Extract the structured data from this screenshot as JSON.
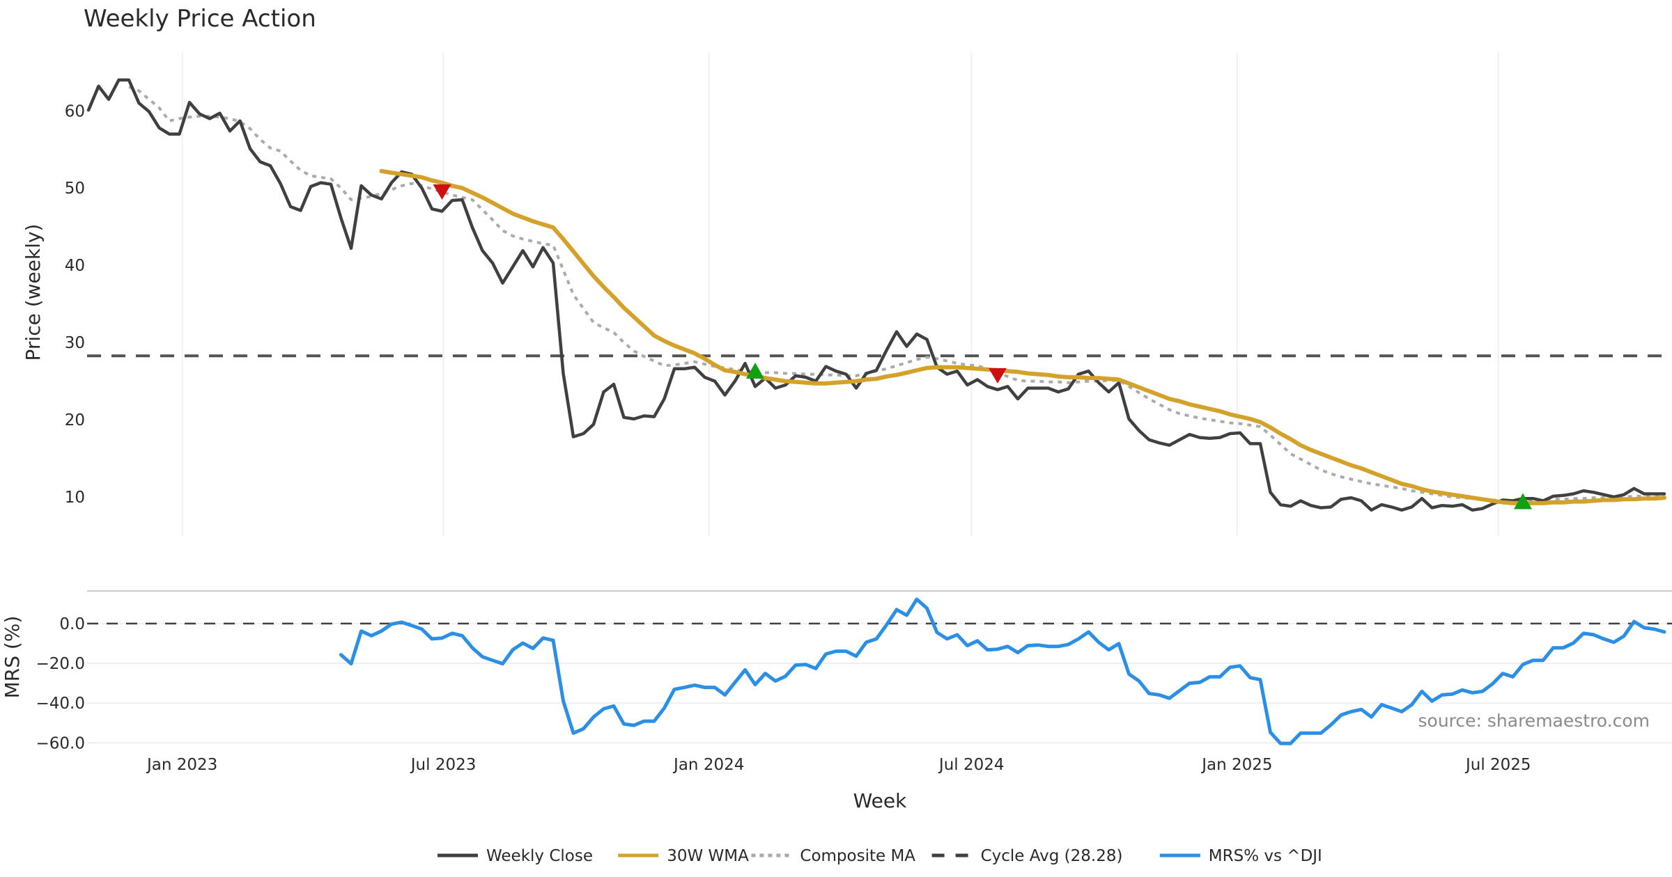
{
  "chart_data": {
    "type": "line",
    "title": "Weekly Price Action",
    "start_date": "2022-10-28",
    "step_days": 7,
    "xlabel": "Week",
    "x_ticks": [
      {
        "date": "2023-01-01",
        "label": "Jan 2023"
      },
      {
        "date": "2023-07-01",
        "label": "Jul 2023"
      },
      {
        "date": "2024-01-01",
        "label": "Jan 2024"
      },
      {
        "date": "2024-07-01",
        "label": "Jul 2024"
      },
      {
        "date": "2025-01-01",
        "label": "Jan 2025"
      },
      {
        "date": "2025-07-01",
        "label": "Jul 2025"
      }
    ],
    "price_panel": {
      "ylabel": "Price (weekly)",
      "ylim": [
        4.95,
        67.6
      ],
      "y_ticks": [
        {
          "value": 10,
          "label": "10"
        },
        {
          "value": 20,
          "label": "20"
        },
        {
          "value": 30,
          "label": "30"
        },
        {
          "value": 40,
          "label": "40"
        },
        {
          "value": 50,
          "label": "50"
        },
        {
          "value": 60,
          "label": "60"
        }
      ],
      "series": [
        {
          "name": "Weekly Close",
          "color": "#404040",
          "style": "solid",
          "start_index": 0,
          "values": [
            60.1,
            63.2,
            61.5,
            64.0,
            64.0,
            61.0,
            59.9,
            57.8,
            57.0,
            57.0,
            61.1,
            59.6,
            59.0,
            59.7,
            57.4,
            58.7,
            55.1,
            53.4,
            52.9,
            50.6,
            47.6,
            47.1,
            50.2,
            50.7,
            50.5,
            46.1,
            42.2,
            50.3,
            49.1,
            48.6,
            50.7,
            52.1,
            51.8,
            50.0,
            47.3,
            47.0,
            48.4,
            48.5,
            44.9,
            41.9,
            40.3,
            37.7,
            39.8,
            41.9,
            39.8,
            42.3,
            40.3,
            26.0,
            17.8,
            18.2,
            19.4,
            23.6,
            24.6,
            20.3,
            20.1,
            20.5,
            20.4,
            22.7,
            26.6,
            26.6,
            26.8,
            25.5,
            25.0,
            23.2,
            25.0,
            27.3,
            24.3,
            25.4,
            24.1,
            24.5,
            25.7,
            25.5,
            25.0,
            26.9,
            26.3,
            25.9,
            24.1,
            26.0,
            26.4,
            29.0,
            31.4,
            29.5,
            31.1,
            30.4,
            26.8,
            25.9,
            26.3,
            24.5,
            25.2,
            24.3,
            23.9,
            24.3,
            22.7,
            24.1,
            24.1,
            24.1,
            23.6,
            24.0,
            25.9,
            26.3,
            24.8,
            23.6,
            24.8,
            20.1,
            18.6,
            17.4,
            17.0,
            16.7,
            17.4,
            18.1,
            17.7,
            17.6,
            17.7,
            18.2,
            18.3,
            16.9,
            16.9,
            10.6,
            9.0,
            8.8,
            9.5,
            8.9,
            8.6,
            8.7,
            9.7,
            9.9,
            9.5,
            8.3,
            9.0,
            8.7,
            8.3,
            8.7,
            9.8,
            8.6,
            8.9,
            8.8,
            9.0,
            8.3,
            8.5,
            9.1,
            9.6,
            9.5,
            9.8,
            9.8,
            9.5,
            10.1,
            10.2,
            10.4,
            10.8,
            10.6,
            10.3,
            10.0,
            10.3,
            11.1,
            10.4,
            10.4,
            10.4
          ]
        },
        {
          "name": "30W WMA",
          "color": "#D4A22A",
          "style": "solid",
          "start_index": 29,
          "values": [
            52.2,
            52.0,
            51.8,
            51.6,
            51.4,
            51.0,
            50.7,
            50.3,
            50.0,
            49.4,
            48.8,
            48.1,
            47.4,
            46.7,
            46.2,
            45.7,
            45.3,
            44.9,
            43.4,
            41.8,
            40.2,
            38.6,
            37.2,
            35.9,
            34.5,
            33.3,
            32.1,
            30.9,
            30.2,
            29.6,
            29.1,
            28.6,
            27.9,
            27.1,
            26.4,
            26.2,
            25.9,
            25.7,
            25.4,
            25.2,
            25.0,
            24.9,
            24.8,
            24.7,
            24.7,
            24.8,
            24.9,
            25.0,
            25.2,
            25.3,
            25.6,
            25.8,
            26.1,
            26.4,
            26.7,
            26.8,
            26.8,
            26.8,
            26.7,
            26.6,
            26.5,
            26.4,
            26.3,
            26.2,
            26.0,
            25.9,
            25.8,
            25.6,
            25.5,
            25.5,
            25.4,
            25.4,
            25.3,
            25.2,
            24.7,
            24.2,
            23.7,
            23.2,
            22.7,
            22.4,
            22.0,
            21.7,
            21.4,
            21.1,
            20.7,
            20.4,
            20.1,
            19.7,
            19.0,
            18.2,
            17.5,
            16.7,
            16.1,
            15.6,
            15.1,
            14.6,
            14.1,
            13.7,
            13.2,
            12.7,
            12.2,
            11.7,
            11.4,
            11.0,
            10.7,
            10.5,
            10.3,
            10.1,
            9.9,
            9.7,
            9.5,
            9.3,
            9.2,
            9.2,
            9.2,
            9.2,
            9.3,
            9.3,
            9.4,
            9.4,
            9.5,
            9.6,
            9.6,
            9.7,
            9.7,
            9.8,
            9.8,
            9.9
          ]
        },
        {
          "name": "Composite MA",
          "color": "#ABABAB",
          "style": "dotted",
          "start_index": 4,
          "values": [
            63.1,
            62.6,
            61.5,
            60.4,
            58.7,
            59.0,
            59.2,
            59.3,
            59.3,
            59.2,
            59.0,
            58.6,
            57.7,
            56.3,
            55.2,
            54.8,
            53.5,
            52.3,
            51.6,
            51.4,
            51.2,
            50.0,
            48.5,
            48.7,
            48.9,
            49.3,
            49.8,
            50.3,
            50.6,
            50.3,
            49.9,
            49.5,
            49.1,
            48.8,
            48.5,
            47.2,
            45.9,
            44.5,
            43.8,
            43.4,
            43.1,
            42.8,
            42.6,
            39.4,
            36.2,
            34.4,
            32.6,
            31.9,
            31.3,
            30.0,
            28.9,
            28.2,
            27.6,
            27.0,
            27.1,
            27.3,
            27.5,
            27.2,
            26.9,
            26.7,
            26.5,
            26.3,
            26.2,
            26.1,
            26.1,
            26.0,
            26.0,
            25.9,
            25.9,
            25.8,
            25.8,
            25.7,
            25.7,
            26.0,
            26.3,
            26.6,
            27.0,
            27.4,
            27.8,
            28.1,
            27.9,
            27.6,
            27.3,
            27.1,
            27.0,
            26.6,
            26.1,
            25.6,
            25.1,
            25.0,
            25.0,
            24.9,
            24.9,
            24.8,
            24.9,
            25.0,
            25.0,
            25.1,
            25.1,
            24.3,
            23.5,
            22.7,
            22.0,
            21.3,
            20.8,
            20.5,
            20.2,
            20.0,
            19.8,
            19.6,
            19.5,
            19.3,
            19.1,
            18.0,
            16.8,
            15.6,
            14.9,
            14.2,
            13.5,
            13.0,
            12.6,
            12.3,
            12.0,
            11.7,
            11.5,
            11.3,
            11.1,
            10.8,
            10.6,
            10.4,
            10.2,
            10.0,
            9.9,
            9.8,
            9.7,
            9.6,
            9.5,
            9.5,
            9.6,
            9.6,
            9.6,
            9.7,
            9.7,
            9.8,
            9.8,
            9.9,
            9.9,
            10.0,
            10.0,
            10.1,
            10.1,
            10.2,
            10.2
          ]
        }
      ],
      "reference_line": {
        "name": "Cycle Avg (28.28)",
        "value": 28.28,
        "color": "#404040",
        "style": "dashed"
      },
      "markers": [
        {
          "type": "sell",
          "shape": "triangle-down",
          "color": "#CC1111",
          "index": 35,
          "value": 49.4
        },
        {
          "type": "buy",
          "shape": "triangle-up",
          "color": "#11A011",
          "index": 66,
          "value": 26.4
        },
        {
          "type": "sell",
          "shape": "triangle-down",
          "color": "#CC1111",
          "index": 90,
          "value": 25.6
        },
        {
          "type": "buy",
          "shape": "triangle-up",
          "color": "#11A011",
          "index": 142,
          "value": 9.5
        }
      ]
    },
    "mrs_panel": {
      "ylabel": "MRS (%)",
      "ylim": [
        -62.7,
        16.4
      ],
      "y_ticks": [
        {
          "value": 0,
          "label": "0.0"
        },
        {
          "value": -20,
          "label": "−20.0"
        },
        {
          "value": -40,
          "label": "−40.0"
        },
        {
          "value": -60,
          "label": "−60.0"
        }
      ],
      "zero_line": {
        "value": 0,
        "color": "#404040",
        "style": "dashed"
      },
      "series": [
        {
          "name": "MRS% vs ^DJI",
          "color": "#2B8FE6",
          "style": "solid",
          "start_index": 25,
          "values": [
            -15.7,
            -20.2,
            -3.8,
            -6.1,
            -3.8,
            -0.3,
            0.7,
            -1.0,
            -2.8,
            -7.7,
            -7.3,
            -4.9,
            -6.1,
            -12.2,
            -16.7,
            -18.5,
            -20.2,
            -13.2,
            -9.8,
            -12.5,
            -7.3,
            -8.4,
            -38.9,
            -55.1,
            -52.9,
            -47.0,
            -42.9,
            -41.5,
            -50.5,
            -51.2,
            -49.1,
            -49.1,
            -42.5,
            -33.1,
            -32.1,
            -31.0,
            -32.1,
            -32.1,
            -35.9,
            -29.6,
            -23.3,
            -30.7,
            -25.1,
            -28.9,
            -26.5,
            -20.9,
            -20.6,
            -22.6,
            -15.3,
            -13.9,
            -13.9,
            -16.4,
            -9.4,
            -7.7,
            -0.7,
            7.0,
            4.2,
            12.2,
            7.7,
            -4.5,
            -7.7,
            -5.6,
            -11.1,
            -8.7,
            -13.2,
            -12.9,
            -11.5,
            -14.6,
            -11.1,
            -10.8,
            -11.5,
            -11.5,
            -10.5,
            -7.7,
            -4.2,
            -9.4,
            -13.2,
            -10.1,
            -25.4,
            -28.9,
            -35.2,
            -35.9,
            -37.6,
            -33.8,
            -30.0,
            -29.6,
            -26.8,
            -26.8,
            -22.0,
            -21.3,
            -27.2,
            -28.2,
            -54.7,
            -60.3,
            -60.3,
            -55.1,
            -55.1,
            -55.1,
            -50.9,
            -46.0,
            -44.3,
            -43.2,
            -47.0,
            -40.8,
            -42.5,
            -44.3,
            -40.8,
            -34.1,
            -39.0,
            -35.9,
            -35.5,
            -33.4,
            -34.8,
            -34.1,
            -30.3,
            -25.1,
            -26.8,
            -20.6,
            -18.5,
            -18.5,
            -12.2,
            -12.2,
            -9.8,
            -4.9,
            -5.6,
            -7.7,
            -9.4,
            -6.3,
            1.0,
            -2.1,
            -2.8,
            -4.2
          ]
        }
      ],
      "annotation": "source: sharemaestro.com"
    },
    "legend": {
      "placement": "bottom-center",
      "items": [
        {
          "label": "Weekly Close",
          "color": "#404040",
          "style": "solid"
        },
        {
          "label": "30W WMA",
          "color": "#D4A22A",
          "style": "solid"
        },
        {
          "label": "Composite MA",
          "color": "#ABABAB",
          "style": "dotted"
        },
        {
          "label": "Cycle Avg (28.28)",
          "color": "#404040",
          "style": "dashed"
        },
        {
          "label": "MRS% vs ^DJI",
          "color": "#2B8FE6",
          "style": "solid"
        }
      ]
    }
  }
}
